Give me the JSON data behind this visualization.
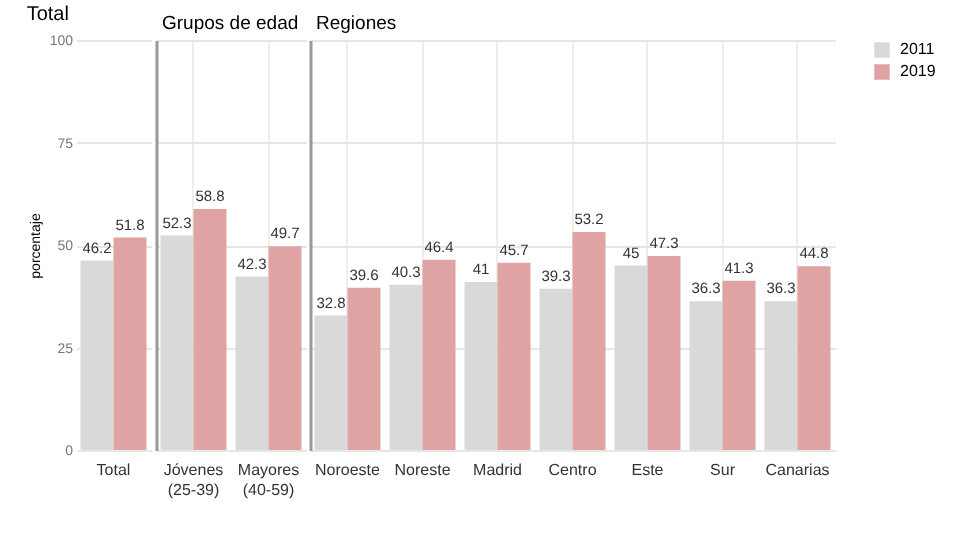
{
  "chart_data": [
    {
      "type": "bar",
      "title": "Total",
      "ylabel": "porcentaje",
      "categories": [
        "Total"
      ],
      "series": [
        {
          "color": "#d9d9d9",
          "values": [
            46.2
          ]
        },
        {
          "color": "#e0a3a3",
          "values": [
            51.8
          ]
        }
      ],
      "ylim": [
        0,
        100
      ],
      "yticks": [
        0,
        25,
        50,
        75,
        100
      ],
      "grid": "y",
      "data_labels": true
    },
    {
      "type": "bar",
      "title": "Grupos de edad",
      "categories": [
        "Jóvenes (25-39)",
        "Mayores (40-59)"
      ],
      "series": [
        {
          "color": "#d9d9d9",
          "values": [
            52.3,
            42.3
          ]
        },
        {
          "color": "#e0a3a3",
          "values": [
            58.8,
            49.7
          ]
        }
      ],
      "ylim": [
        0,
        100
      ],
      "yticks": [
        0,
        25,
        50,
        75,
        100
      ],
      "grid": true,
      "data_labels": true,
      "tick_labels": "x"
    },
    {
      "type": "bar",
      "title": "Regiones",
      "categories": [
        "Noroeste",
        "Noreste",
        "Madrid",
        "Centro",
        "Este",
        "Sur",
        "Canarias"
      ],
      "series": [
        {
          "name": "2011",
          "color": "#d9d9d9",
          "values": [
            32.8,
            40.3,
            41,
            39.3,
            45,
            36.3,
            36.3
          ]
        },
        {
          "name": "2019",
          "color": "#e0a3a3",
          "values": [
            39.6,
            46.4,
            45.7,
            53.2,
            47.3,
            41.3,
            44.8
          ]
        }
      ],
      "ylim": [
        0,
        100
      ],
      "yticks": [
        0,
        25,
        50,
        75,
        100
      ],
      "grid": true,
      "data_labels": true,
      "tick_labels": "x",
      "legend": "right"
    }
  ]
}
